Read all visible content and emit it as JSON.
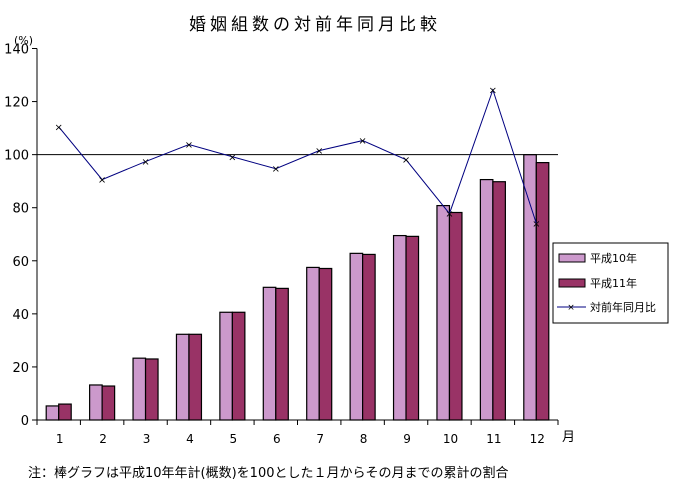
{
  "chart_data": {
    "type": "bar",
    "title": "婚姻組数の対前年同月比較",
    "ylabel": "(%)",
    "xlabel": "月",
    "ylim": [
      0,
      140
    ],
    "yticks": [
      0,
      20,
      40,
      60,
      80,
      100,
      120,
      140
    ],
    "categories": [
      "1",
      "2",
      "3",
      "4",
      "5",
      "6",
      "7",
      "8",
      "9",
      "10",
      "11",
      "12"
    ],
    "reference_line": 100,
    "series": [
      {
        "name": "平成10年",
        "type": "bar",
        "color": "#cc99cc",
        "values": [
          5.3,
          13.2,
          23.3,
          32.3,
          40.6,
          50.0,
          57.5,
          62.8,
          69.5,
          80.8,
          90.6,
          100.0
        ]
      },
      {
        "name": "平成11年",
        "type": "bar",
        "color": "#993366",
        "values": [
          6.0,
          12.8,
          23.0,
          32.3,
          40.6,
          49.6,
          57.1,
          62.4,
          69.2,
          78.2,
          89.8,
          97.0
        ]
      },
      {
        "name": "対前年同月比",
        "type": "line",
        "color": "#000080",
        "values": [
          110.5,
          90.6,
          97.4,
          103.8,
          99.2,
          94.7,
          101.5,
          105.3,
          98.1,
          77.8,
          124.4,
          74.1
        ]
      }
    ],
    "legend": "right",
    "grid": false,
    "note": "注：棒グラフは平成10年年計(概数)を100とした１月からその月までの累計の割合"
  }
}
